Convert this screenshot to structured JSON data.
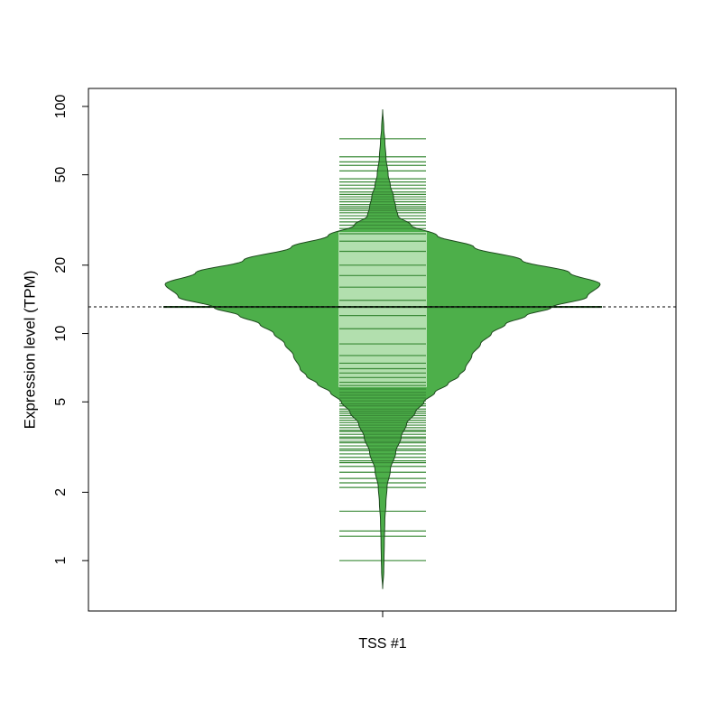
{
  "chart_data": {
    "type": "beanplot",
    "scale": "log",
    "ylabel": "Expression level (TPM)",
    "xlabel": "",
    "categories": [
      "TSS #1"
    ],
    "y_ticks": [
      1,
      2,
      5,
      10,
      20,
      50,
      100
    ],
    "y_tick_labels": [
      "1",
      "2",
      "5",
      "10",
      "20",
      "50",
      "100"
    ],
    "ylim": [
      0.6,
      120
    ],
    "overall_mean": 13.1,
    "series": [
      {
        "category": "TSS #1",
        "mean": 13.1,
        "iqr_box": [
          5.8,
          28
        ],
        "density_min": 0.75,
        "density_max": 97,
        "density_profile": [
          [
            0.75,
            0.0
          ],
          [
            0.9,
            0.01
          ],
          [
            1.0,
            0.012
          ],
          [
            1.2,
            0.015
          ],
          [
            1.5,
            0.02
          ],
          [
            1.8,
            0.03
          ],
          [
            2.1,
            0.04
          ],
          [
            2.5,
            0.07
          ],
          [
            3.0,
            0.12
          ],
          [
            3.5,
            0.17
          ],
          [
            4.0,
            0.22
          ],
          [
            4.5,
            0.3
          ],
          [
            5.0,
            0.38
          ],
          [
            5.5,
            0.48
          ],
          [
            6.0,
            0.6
          ],
          [
            6.5,
            0.7
          ],
          [
            7.0,
            0.76
          ],
          [
            8.0,
            0.82
          ],
          [
            9.0,
            0.9
          ],
          [
            10.0,
            1.0
          ],
          [
            11.0,
            1.13
          ],
          [
            12.0,
            1.32
          ],
          [
            13.0,
            1.55
          ],
          [
            14.5,
            1.88
          ],
          [
            16.5,
            2.0
          ],
          [
            18.5,
            1.72
          ],
          [
            21.0,
            1.28
          ],
          [
            24.0,
            0.84
          ],
          [
            27.0,
            0.5
          ],
          [
            30.0,
            0.26
          ],
          [
            33.0,
            0.14
          ],
          [
            36.0,
            0.12
          ],
          [
            40.0,
            0.1
          ],
          [
            45.0,
            0.07
          ],
          [
            50.0,
            0.05
          ],
          [
            60.0,
            0.03
          ],
          [
            70.0,
            0.02
          ],
          [
            80.0,
            0.01
          ],
          [
            97.0,
            0.0
          ]
        ],
        "observations": [
          1.0,
          1.28,
          1.35,
          1.65,
          2.1,
          2.2,
          2.3,
          2.45,
          2.6,
          2.7,
          2.75,
          2.85,
          2.95,
          3.05,
          3.1,
          3.2,
          3.3,
          3.35,
          3.45,
          3.5,
          3.6,
          3.7,
          3.75,
          3.85,
          3.95,
          4.05,
          4.15,
          4.25,
          4.35,
          4.45,
          4.55,
          4.65,
          4.8,
          4.9,
          5.05,
          5.2,
          5.35,
          5.5,
          5.7,
          5.9,
          6.1,
          6.4,
          6.7,
          7.0,
          7.4,
          8.0,
          9.0,
          10.5,
          12.0,
          14.0,
          16.0,
          18.0,
          20.0,
          23.0,
          25.5,
          27.5,
          29.0,
          30.0,
          31.0,
          32.0,
          33.0,
          34.0,
          34.8,
          35.5,
          36.2,
          37.0,
          38.0,
          39.0,
          40.0,
          41.0,
          42.0,
          43.5,
          45.0,
          46.5,
          48.0,
          52.0,
          55.0,
          57.0,
          60.0,
          72.0
        ]
      }
    ],
    "colors": {
      "bean_fill": "#4daf4a",
      "bean_stroke": "#1e4a1e",
      "box_fill": "#b2dfae",
      "beanline": "#3a8a37",
      "mean_line": "#1a3d1a",
      "overall_line": "#000000"
    }
  }
}
